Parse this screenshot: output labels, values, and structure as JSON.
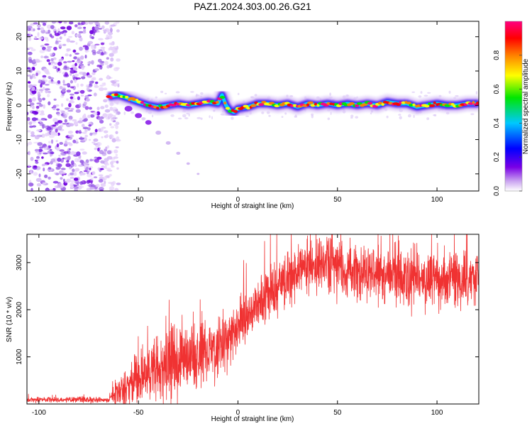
{
  "title": "PAZ1.2024.303.00.26.G21",
  "chart_data": [
    {
      "type": "heatmap",
      "xlabel": "Height of straight line (km)",
      "ylabel": "Frequency (Hz)",
      "xlim": [
        -106,
        121
      ],
      "ylim": [
        -25,
        24.5
      ],
      "xticks": [
        -100,
        -50,
        0,
        50,
        100
      ],
      "yticks": [
        -20,
        -10,
        0,
        10,
        20
      ],
      "colorbar": {
        "label": "Normalized spectral amplitude",
        "range": [
          0.0,
          1.0
        ],
        "ticks": [
          0.0,
          0.2,
          0.4,
          0.6,
          0.8
        ],
        "colormap": [
          "#ffffff",
          "#7a00e6",
          "#0000ff",
          "#00c8ff",
          "#00e600",
          "#ffff00",
          "#ff8000",
          "#ff0000",
          "#ff0080"
        ]
      },
      "noise_region_x": [
        -106,
        -64
      ],
      "ridge_x_start": -65,
      "ridge": [
        {
          "x": -65,
          "y": 2.5
        },
        {
          "x": -60,
          "y": 3.0
        },
        {
          "x": -55,
          "y": 2.0
        },
        {
          "x": -50,
          "y": 1.0
        },
        {
          "x": -45,
          "y": 0.0
        },
        {
          "x": -40,
          "y": -0.5
        },
        {
          "x": -35,
          "y": 0.0
        },
        {
          "x": -30,
          "y": 0.5
        },
        {
          "x": -25,
          "y": 0.0
        },
        {
          "x": -20,
          "y": 0.5
        },
        {
          "x": -15,
          "y": 1.0
        },
        {
          "x": -10,
          "y": 0.5
        },
        {
          "x": -8,
          "y": 3.0
        },
        {
          "x": -6,
          "y": 0.0
        },
        {
          "x": -4,
          "y": -1.5
        },
        {
          "x": -2,
          "y": -2.0
        },
        {
          "x": 0,
          "y": -1.0
        },
        {
          "x": 5,
          "y": -0.5
        },
        {
          "x": 10,
          "y": 0.5
        },
        {
          "x": 15,
          "y": 0.5
        },
        {
          "x": 20,
          "y": 0.0
        },
        {
          "x": 25,
          "y": 0.5
        },
        {
          "x": 30,
          "y": -0.5
        },
        {
          "x": 35,
          "y": 0.5
        },
        {
          "x": 40,
          "y": 0.0
        },
        {
          "x": 45,
          "y": 0.5
        },
        {
          "x": 50,
          "y": 0.0
        },
        {
          "x": 55,
          "y": 0.5
        },
        {
          "x": 60,
          "y": 0.0
        },
        {
          "x": 65,
          "y": 0.5
        },
        {
          "x": 70,
          "y": 0.0
        },
        {
          "x": 75,
          "y": 1.0
        },
        {
          "x": 80,
          "y": 0.5
        },
        {
          "x": 85,
          "y": 0.5
        },
        {
          "x": 90,
          "y": -0.5
        },
        {
          "x": 95,
          "y": 0.0
        },
        {
          "x": 100,
          "y": 0.5
        },
        {
          "x": 105,
          "y": 0.0
        },
        {
          "x": 110,
          "y": 0.0
        },
        {
          "x": 115,
          "y": 0.5
        },
        {
          "x": 121,
          "y": 0.5
        }
      ],
      "tail": [
        {
          "x": -55,
          "y": -1.0
        },
        {
          "x": -50,
          "y": -3.0
        },
        {
          "x": -45,
          "y": -5.0
        },
        {
          "x": -40,
          "y": -8.0
        },
        {
          "x": -35,
          "y": -11.0
        },
        {
          "x": -30,
          "y": -14.0
        },
        {
          "x": -25,
          "y": -17.0
        },
        {
          "x": -20,
          "y": -20.0
        }
      ]
    },
    {
      "type": "line",
      "xlabel": "Height of straight line (km)",
      "ylabel": "SNR (10 * v/v)",
      "xlim": [
        -106,
        121
      ],
      "ylim": [
        0,
        3600
      ],
      "xticks": [
        -100,
        -50,
        0,
        50,
        100
      ],
      "yticks": [
        1000,
        2000,
        3000
      ],
      "color": "#f03232",
      "envelope": [
        {
          "x": -106,
          "mean": 90,
          "spread": 60
        },
        {
          "x": -65,
          "mean": 90,
          "spread": 70
        },
        {
          "x": -60,
          "mean": 250,
          "spread": 400
        },
        {
          "x": -50,
          "mean": 550,
          "spread": 600
        },
        {
          "x": -40,
          "mean": 800,
          "spread": 800
        },
        {
          "x": -30,
          "mean": 900,
          "spread": 900
        },
        {
          "x": -20,
          "mean": 1000,
          "spread": 800
        },
        {
          "x": -10,
          "mean": 1200,
          "spread": 700
        },
        {
          "x": 0,
          "mean": 1650,
          "spread": 600
        },
        {
          "x": 10,
          "mean": 2100,
          "spread": 600
        },
        {
          "x": 20,
          "mean": 2500,
          "spread": 600
        },
        {
          "x": 30,
          "mean": 2850,
          "spread": 600
        },
        {
          "x": 45,
          "mean": 2950,
          "spread": 650
        },
        {
          "x": 60,
          "mean": 2850,
          "spread": 700
        },
        {
          "x": 75,
          "mean": 2750,
          "spread": 700
        },
        {
          "x": 90,
          "mean": 2650,
          "spread": 700
        },
        {
          "x": 105,
          "mean": 2650,
          "spread": 700
        },
        {
          "x": 121,
          "mean": 2700,
          "spread": 600
        }
      ]
    }
  ]
}
